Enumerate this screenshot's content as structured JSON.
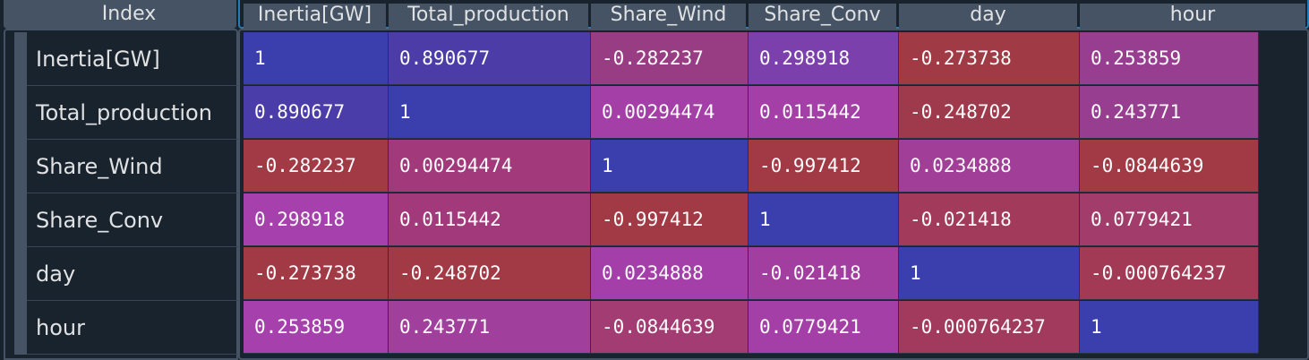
{
  "index_header": "Index",
  "columns": [
    "Inertia[GW]",
    "Total_production",
    "Share_Wind",
    "Share_Conv",
    "day",
    "hour"
  ],
  "rows": [
    {
      "label": "Inertia[GW]",
      "values": [
        "1",
        "0.890677",
        "-0.282237",
        "0.298918",
        "-0.273738",
        "0.253859"
      ]
    },
    {
      "label": "Total_production",
      "values": [
        "0.890677",
        "1",
        "0.00294474",
        "0.0115442",
        "-0.248702",
        "0.243771"
      ]
    },
    {
      "label": "Share_Wind",
      "values": [
        "-0.282237",
        "0.00294474",
        "1",
        "-0.997412",
        "0.0234888",
        "-0.0844639"
      ]
    },
    {
      "label": "Share_Conv",
      "values": [
        "0.298918",
        "0.0115442",
        "-0.997412",
        "1",
        "-0.021418",
        "0.0779421"
      ]
    },
    {
      "label": "day",
      "values": [
        "-0.273738",
        "-0.248702",
        "0.0234888",
        "-0.021418",
        "1",
        "-0.000764237"
      ]
    },
    {
      "label": "hour",
      "values": [
        "0.253859",
        "0.243771",
        "-0.0844639",
        "0.0779421",
        "-0.000764237",
        "1"
      ]
    }
  ],
  "colors": {
    "background": "#19232d",
    "header": "#455364",
    "accent": "#2a7ab5",
    "cell_high": "#3a3fad",
    "cell_mid": "#a23ea6",
    "cell_low": "#a23a45"
  }
}
